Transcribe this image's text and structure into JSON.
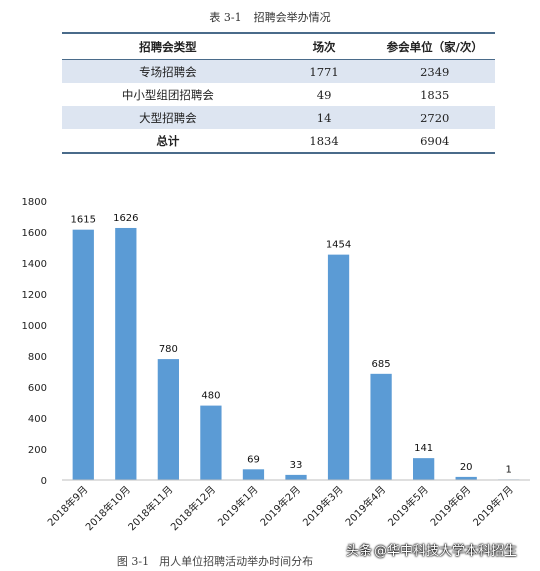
{
  "table": {
    "caption_num": "表 3-1",
    "caption_title": "招聘会举办情况",
    "headers": [
      "招聘会类型",
      "场次",
      "参会单位（家/次）"
    ],
    "rows": [
      [
        "专场招聘会",
        "1771",
        "2349"
      ],
      [
        "中小型组团招聘会",
        "49",
        "1835"
      ],
      [
        "大型招聘会",
        "14",
        "2720"
      ]
    ],
    "total": [
      "总计",
      "1834",
      "6904"
    ]
  },
  "figure": {
    "caption_num": "图 3-1",
    "caption_title": "用人单位招聘活动举办时间分布"
  },
  "watermark": {
    "prefix": "头条",
    "handle": "@华中科技大学本科招生"
  },
  "chart_data": {
    "type": "bar",
    "categories": [
      "2018年9月",
      "2018年10月",
      "2018年11月",
      "2018年12月",
      "2019年1月",
      "2019年2月",
      "2019年3月",
      "2019年4月",
      "2019年5月",
      "2019年6月",
      "2019年7月"
    ],
    "values": [
      1615,
      1626,
      780,
      480,
      69,
      33,
      1454,
      685,
      141,
      20,
      1
    ],
    "ylim": [
      0,
      1800
    ],
    "yticks": [
      0,
      200,
      400,
      600,
      800,
      1000,
      1200,
      1400,
      1600,
      1800
    ],
    "grid": false,
    "legend": "none",
    "bar_color": "#5b9bd5"
  }
}
